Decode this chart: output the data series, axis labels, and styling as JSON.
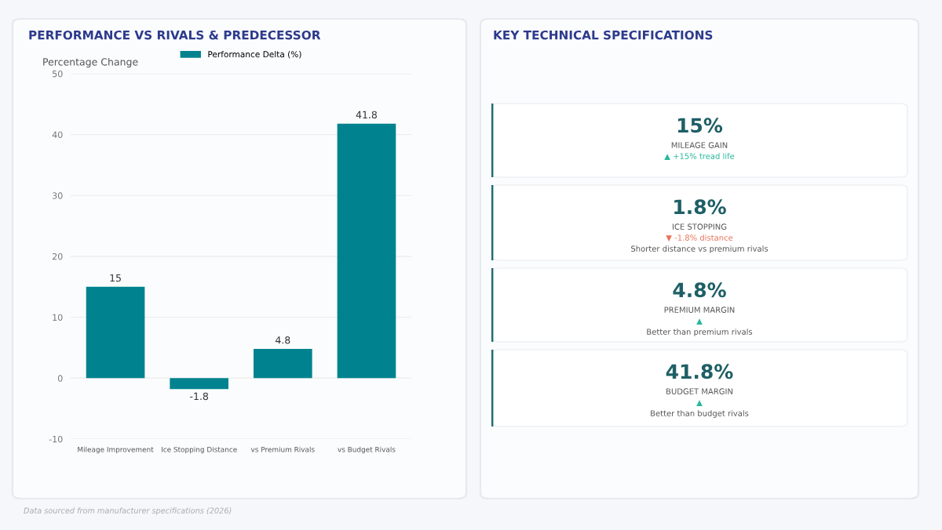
{
  "chart_data": [
    {
      "type": "bar",
      "title": "PERFORMANCE VS RIVALS & PREDECESSOR",
      "ylabel": "Percentage Change",
      "categories": [
        "Mileage Improvement",
        "Ice Stopping Distance",
        "vs Premium Rivals",
        "vs Budget Rivals"
      ],
      "series": [
        {
          "name": "Performance Delta (%)",
          "color": "#00838f",
          "values": [
            15,
            -1.8,
            4.8,
            41.8
          ]
        }
      ],
      "ylim": [
        -10,
        50
      ],
      "yticks": [
        -10,
        0,
        10,
        20,
        30,
        40,
        50
      ],
      "grid": "y",
      "legend": "top",
      "data_labels": true,
      "annotations": [
        "Data sourced from manufacturer specifications (2026)"
      ]
    },
    {
      "type": "other",
      "title": "KEY TECHNICAL SPECIFICATIONS",
      "annotations": [
        "15%\nMILEAGE GAIN\n▲ +15% tread life",
        "1.8%\nICE STOPPING\n▼ -1.8% distance\nShorter distance vs premium rivals",
        "4.8%\nPREMIUM MARGIN\n▲\nBetter than premium rivals",
        "41.8%\nBUDGET MARGIN\n▲\nBetter than budget rivals"
      ],
      "colors": [
        "#26b89a",
        "#e8735a",
        "#26b89a",
        "#26b89a"
      ]
    }
  ]
}
